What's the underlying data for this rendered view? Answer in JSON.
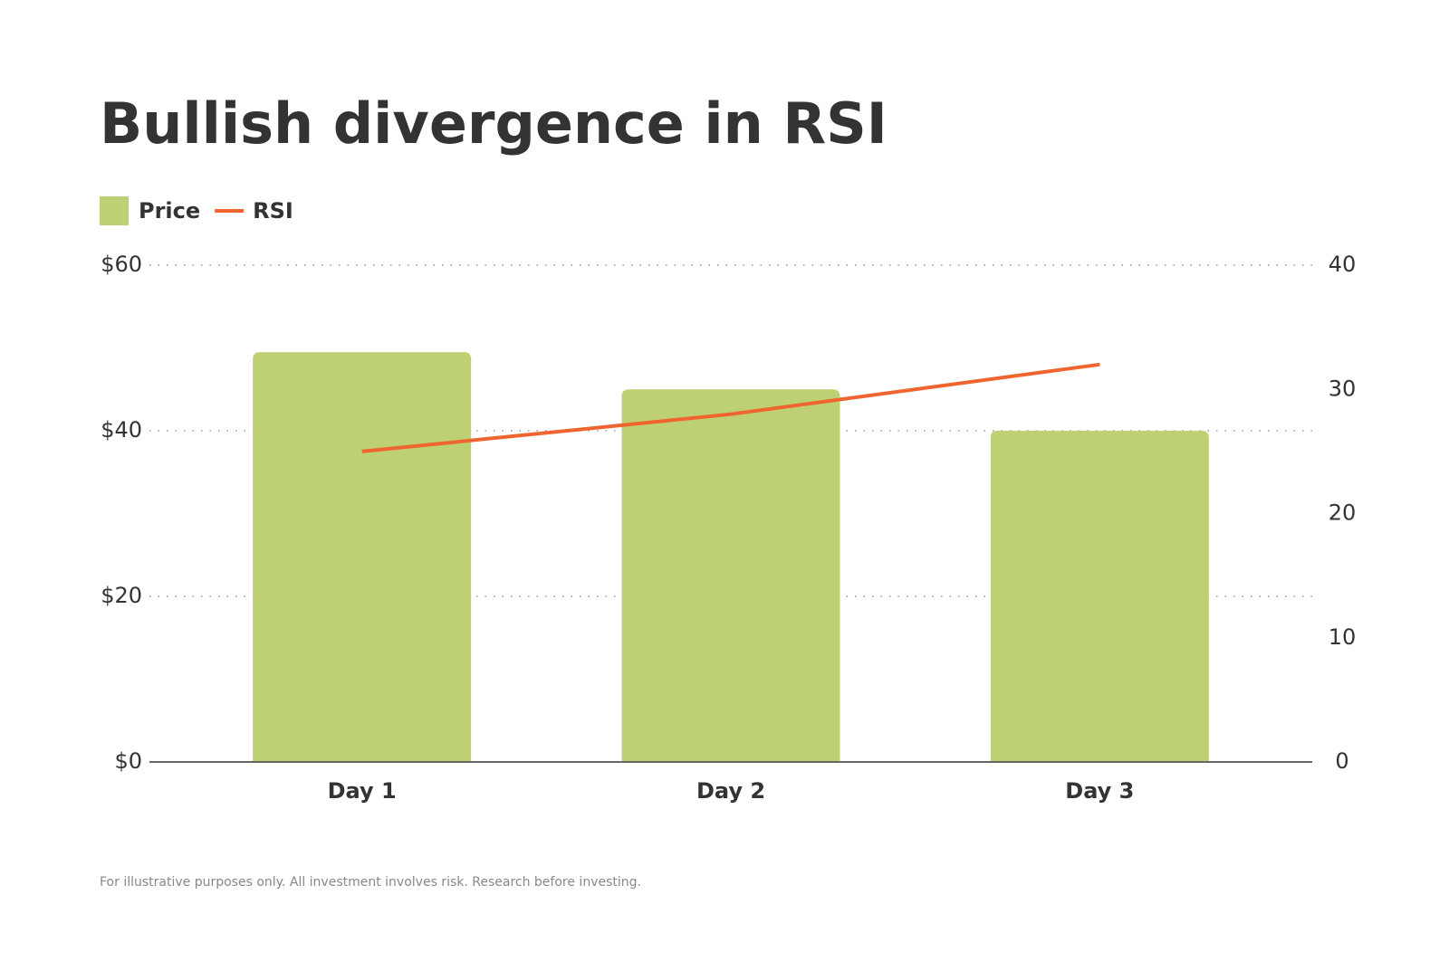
{
  "chart_data": {
    "type": "bar",
    "title": "Bullish divergence in RSI",
    "categories": [
      "Day 1",
      "Day 2",
      "Day 3"
    ],
    "series": [
      {
        "name": "Price",
        "type": "bar",
        "color": "#bdd174",
        "values": [
          49.5,
          45,
          40
        ]
      },
      {
        "name": "RSI",
        "type": "line",
        "color": "#f0652f",
        "axis": "y2",
        "values": [
          25,
          28,
          32
        ]
      }
    ],
    "ylim": [
      0,
      60
    ],
    "yticks": [
      {
        "value": 0,
        "label": "$0"
      },
      {
        "value": 20,
        "label": "$20"
      },
      {
        "value": 40,
        "label": "$40"
      },
      {
        "value": 60,
        "label": "$60"
      }
    ],
    "y2lim": [
      0,
      40
    ],
    "y2ticks": [
      0,
      10,
      20,
      30,
      40
    ],
    "grid": true,
    "legend": "top-left",
    "footnote": "For illustrative purposes only. All investment involves risk. Research before investing."
  }
}
